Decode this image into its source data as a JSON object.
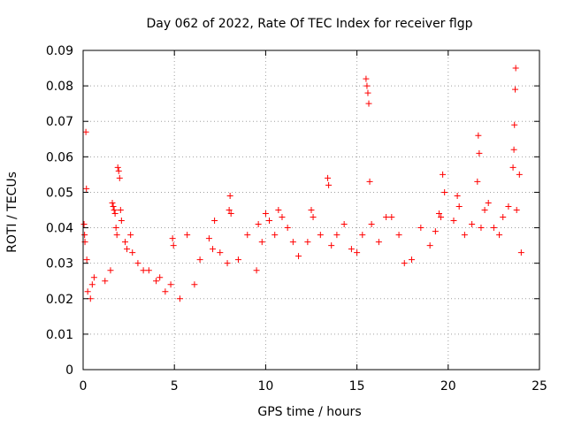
{
  "chart_data": {
    "type": "scatter",
    "title": "Day 062 of 2022, Rate Of TEC Index for receiver flgp",
    "xlabel": "GPS time / hours",
    "ylabel": "ROTI / TECUs",
    "xlim": [
      0,
      25
    ],
    "ylim": [
      0,
      0.09
    ],
    "x_ticks": [
      0,
      5,
      10,
      15,
      20,
      25
    ],
    "x_tick_labels": [
      "0",
      "5",
      "10",
      "15",
      "20",
      "25"
    ],
    "y_ticks": [
      0,
      0.01,
      0.02,
      0.03,
      0.04,
      0.05,
      0.06,
      0.07,
      0.08,
      0.09
    ],
    "y_tick_labels": [
      "0",
      "0.01",
      "0.02",
      "0.03",
      "0.04",
      "0.05",
      "0.06",
      "0.07",
      "0.08",
      "0.09"
    ],
    "grid": true,
    "marker": "+",
    "color": "#ff0000",
    "series": [
      {
        "name": "ROTI",
        "points": [
          [
            0.05,
            0.041
          ],
          [
            0.08,
            0.038
          ],
          [
            0.1,
            0.036
          ],
          [
            0.15,
            0.067
          ],
          [
            0.18,
            0.051
          ],
          [
            0.2,
            0.031
          ],
          [
            0.25,
            0.022
          ],
          [
            0.4,
            0.02
          ],
          [
            0.5,
            0.024
          ],
          [
            0.6,
            0.026
          ],
          [
            1.2,
            0.025
          ],
          [
            1.5,
            0.028
          ],
          [
            1.6,
            0.047
          ],
          [
            1.65,
            0.046
          ],
          [
            1.7,
            0.045
          ],
          [
            1.75,
            0.044
          ],
          [
            1.8,
            0.04
          ],
          [
            1.85,
            0.038
          ],
          [
            1.9,
            0.057
          ],
          [
            1.95,
            0.056
          ],
          [
            2.0,
            0.054
          ],
          [
            2.05,
            0.045
          ],
          [
            2.1,
            0.042
          ],
          [
            2.3,
            0.036
          ],
          [
            2.4,
            0.034
          ],
          [
            2.6,
            0.038
          ],
          [
            2.7,
            0.033
          ],
          [
            3.0,
            0.03
          ],
          [
            3.3,
            0.028
          ],
          [
            3.6,
            0.028
          ],
          [
            4.0,
            0.025
          ],
          [
            4.2,
            0.026
          ],
          [
            4.5,
            0.022
          ],
          [
            4.8,
            0.024
          ],
          [
            4.9,
            0.037
          ],
          [
            4.95,
            0.035
          ],
          [
            5.3,
            0.02
          ],
          [
            5.7,
            0.038
          ],
          [
            6.1,
            0.024
          ],
          [
            6.4,
            0.031
          ],
          [
            6.9,
            0.037
          ],
          [
            7.1,
            0.034
          ],
          [
            7.2,
            0.042
          ],
          [
            7.5,
            0.033
          ],
          [
            7.9,
            0.03
          ],
          [
            8.0,
            0.045
          ],
          [
            8.05,
            0.049
          ],
          [
            8.1,
            0.044
          ],
          [
            8.5,
            0.031
          ],
          [
            9.0,
            0.038
          ],
          [
            9.5,
            0.028
          ],
          [
            9.6,
            0.041
          ],
          [
            9.8,
            0.036
          ],
          [
            10.0,
            0.044
          ],
          [
            10.2,
            0.042
          ],
          [
            10.5,
            0.038
          ],
          [
            10.7,
            0.045
          ],
          [
            10.9,
            0.043
          ],
          [
            11.2,
            0.04
          ],
          [
            11.5,
            0.036
          ],
          [
            11.8,
            0.032
          ],
          [
            12.3,
            0.036
          ],
          [
            12.5,
            0.045
          ],
          [
            12.6,
            0.043
          ],
          [
            13.0,
            0.038
          ],
          [
            13.4,
            0.054
          ],
          [
            13.45,
            0.052
          ],
          [
            13.6,
            0.035
          ],
          [
            13.9,
            0.038
          ],
          [
            14.3,
            0.041
          ],
          [
            14.7,
            0.034
          ],
          [
            15.0,
            0.033
          ],
          [
            15.3,
            0.038
          ],
          [
            15.5,
            0.082
          ],
          [
            15.55,
            0.08
          ],
          [
            15.6,
            0.078
          ],
          [
            15.65,
            0.075
          ],
          [
            15.7,
            0.053
          ],
          [
            15.8,
            0.041
          ],
          [
            16.2,
            0.036
          ],
          [
            16.6,
            0.043
          ],
          [
            16.9,
            0.043
          ],
          [
            17.3,
            0.038
          ],
          [
            17.6,
            0.03
          ],
          [
            18.0,
            0.031
          ],
          [
            18.5,
            0.04
          ],
          [
            19.0,
            0.035
          ],
          [
            19.3,
            0.039
          ],
          [
            19.5,
            0.044
          ],
          [
            19.6,
            0.043
          ],
          [
            19.7,
            0.055
          ],
          [
            19.8,
            0.05
          ],
          [
            20.3,
            0.042
          ],
          [
            20.5,
            0.049
          ],
          [
            20.6,
            0.046
          ],
          [
            20.9,
            0.038
          ],
          [
            21.3,
            0.041
          ],
          [
            21.6,
            0.053
          ],
          [
            21.65,
            0.066
          ],
          [
            21.7,
            0.061
          ],
          [
            21.8,
            0.04
          ],
          [
            22.0,
            0.045
          ],
          [
            22.2,
            0.047
          ],
          [
            22.5,
            0.04
          ],
          [
            22.8,
            0.038
          ],
          [
            23.0,
            0.043
          ],
          [
            23.3,
            0.046
          ],
          [
            23.55,
            0.057
          ],
          [
            23.6,
            0.062
          ],
          [
            23.63,
            0.069
          ],
          [
            23.67,
            0.079
          ],
          [
            23.7,
            0.085
          ],
          [
            23.75,
            0.045
          ],
          [
            23.9,
            0.055
          ],
          [
            24.0,
            0.033
          ]
        ]
      }
    ]
  }
}
